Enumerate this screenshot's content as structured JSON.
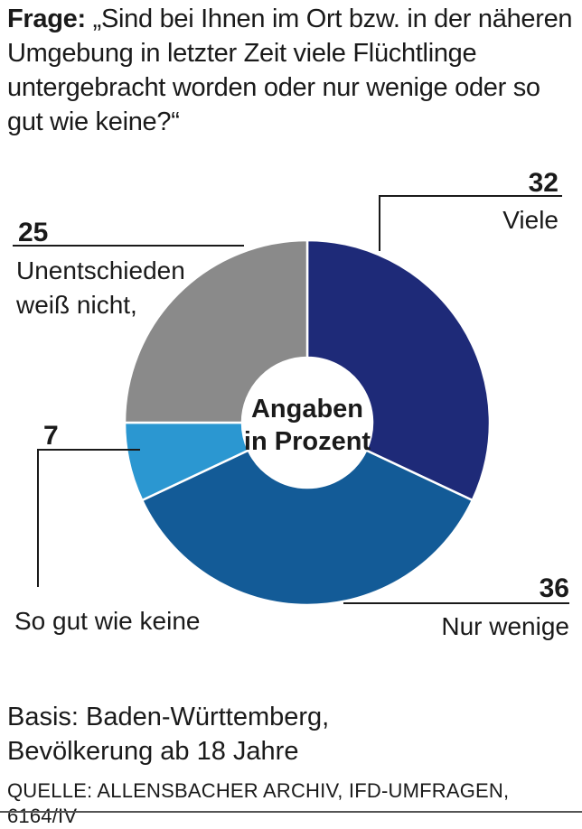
{
  "question": {
    "prefix": "Frage:",
    "text": "„Sind bei Ihnen im Ort bzw. in der näheren Umgebung in letzter Zeit viele Flüchtlinge untergebracht worden oder nur wenige oder so gut wie keine?“"
  },
  "chart_data": {
    "type": "pie",
    "center_label": [
      "Angaben",
      "in Prozent"
    ],
    "slices": [
      {
        "label": "Viele",
        "value": 32,
        "color": "#1e2a78"
      },
      {
        "label": "Nur wenige",
        "value": 36,
        "color": "#135b97"
      },
      {
        "label": "So gut wie keine",
        "value": 7,
        "color": "#2b97d1"
      },
      {
        "label": [
          "Unentschieden",
          "weiß nicht,"
        ],
        "value": 25,
        "color": "#8a8a8a"
      }
    ]
  },
  "basis": {
    "line1": "Basis: Baden-Württemberg,",
    "line2": "Bevölkerung ab 18 Jahre"
  },
  "source": "QUELLE: ALLENSBACHER ARCHIV, IFD-UMFRAGEN, 6164/IV"
}
